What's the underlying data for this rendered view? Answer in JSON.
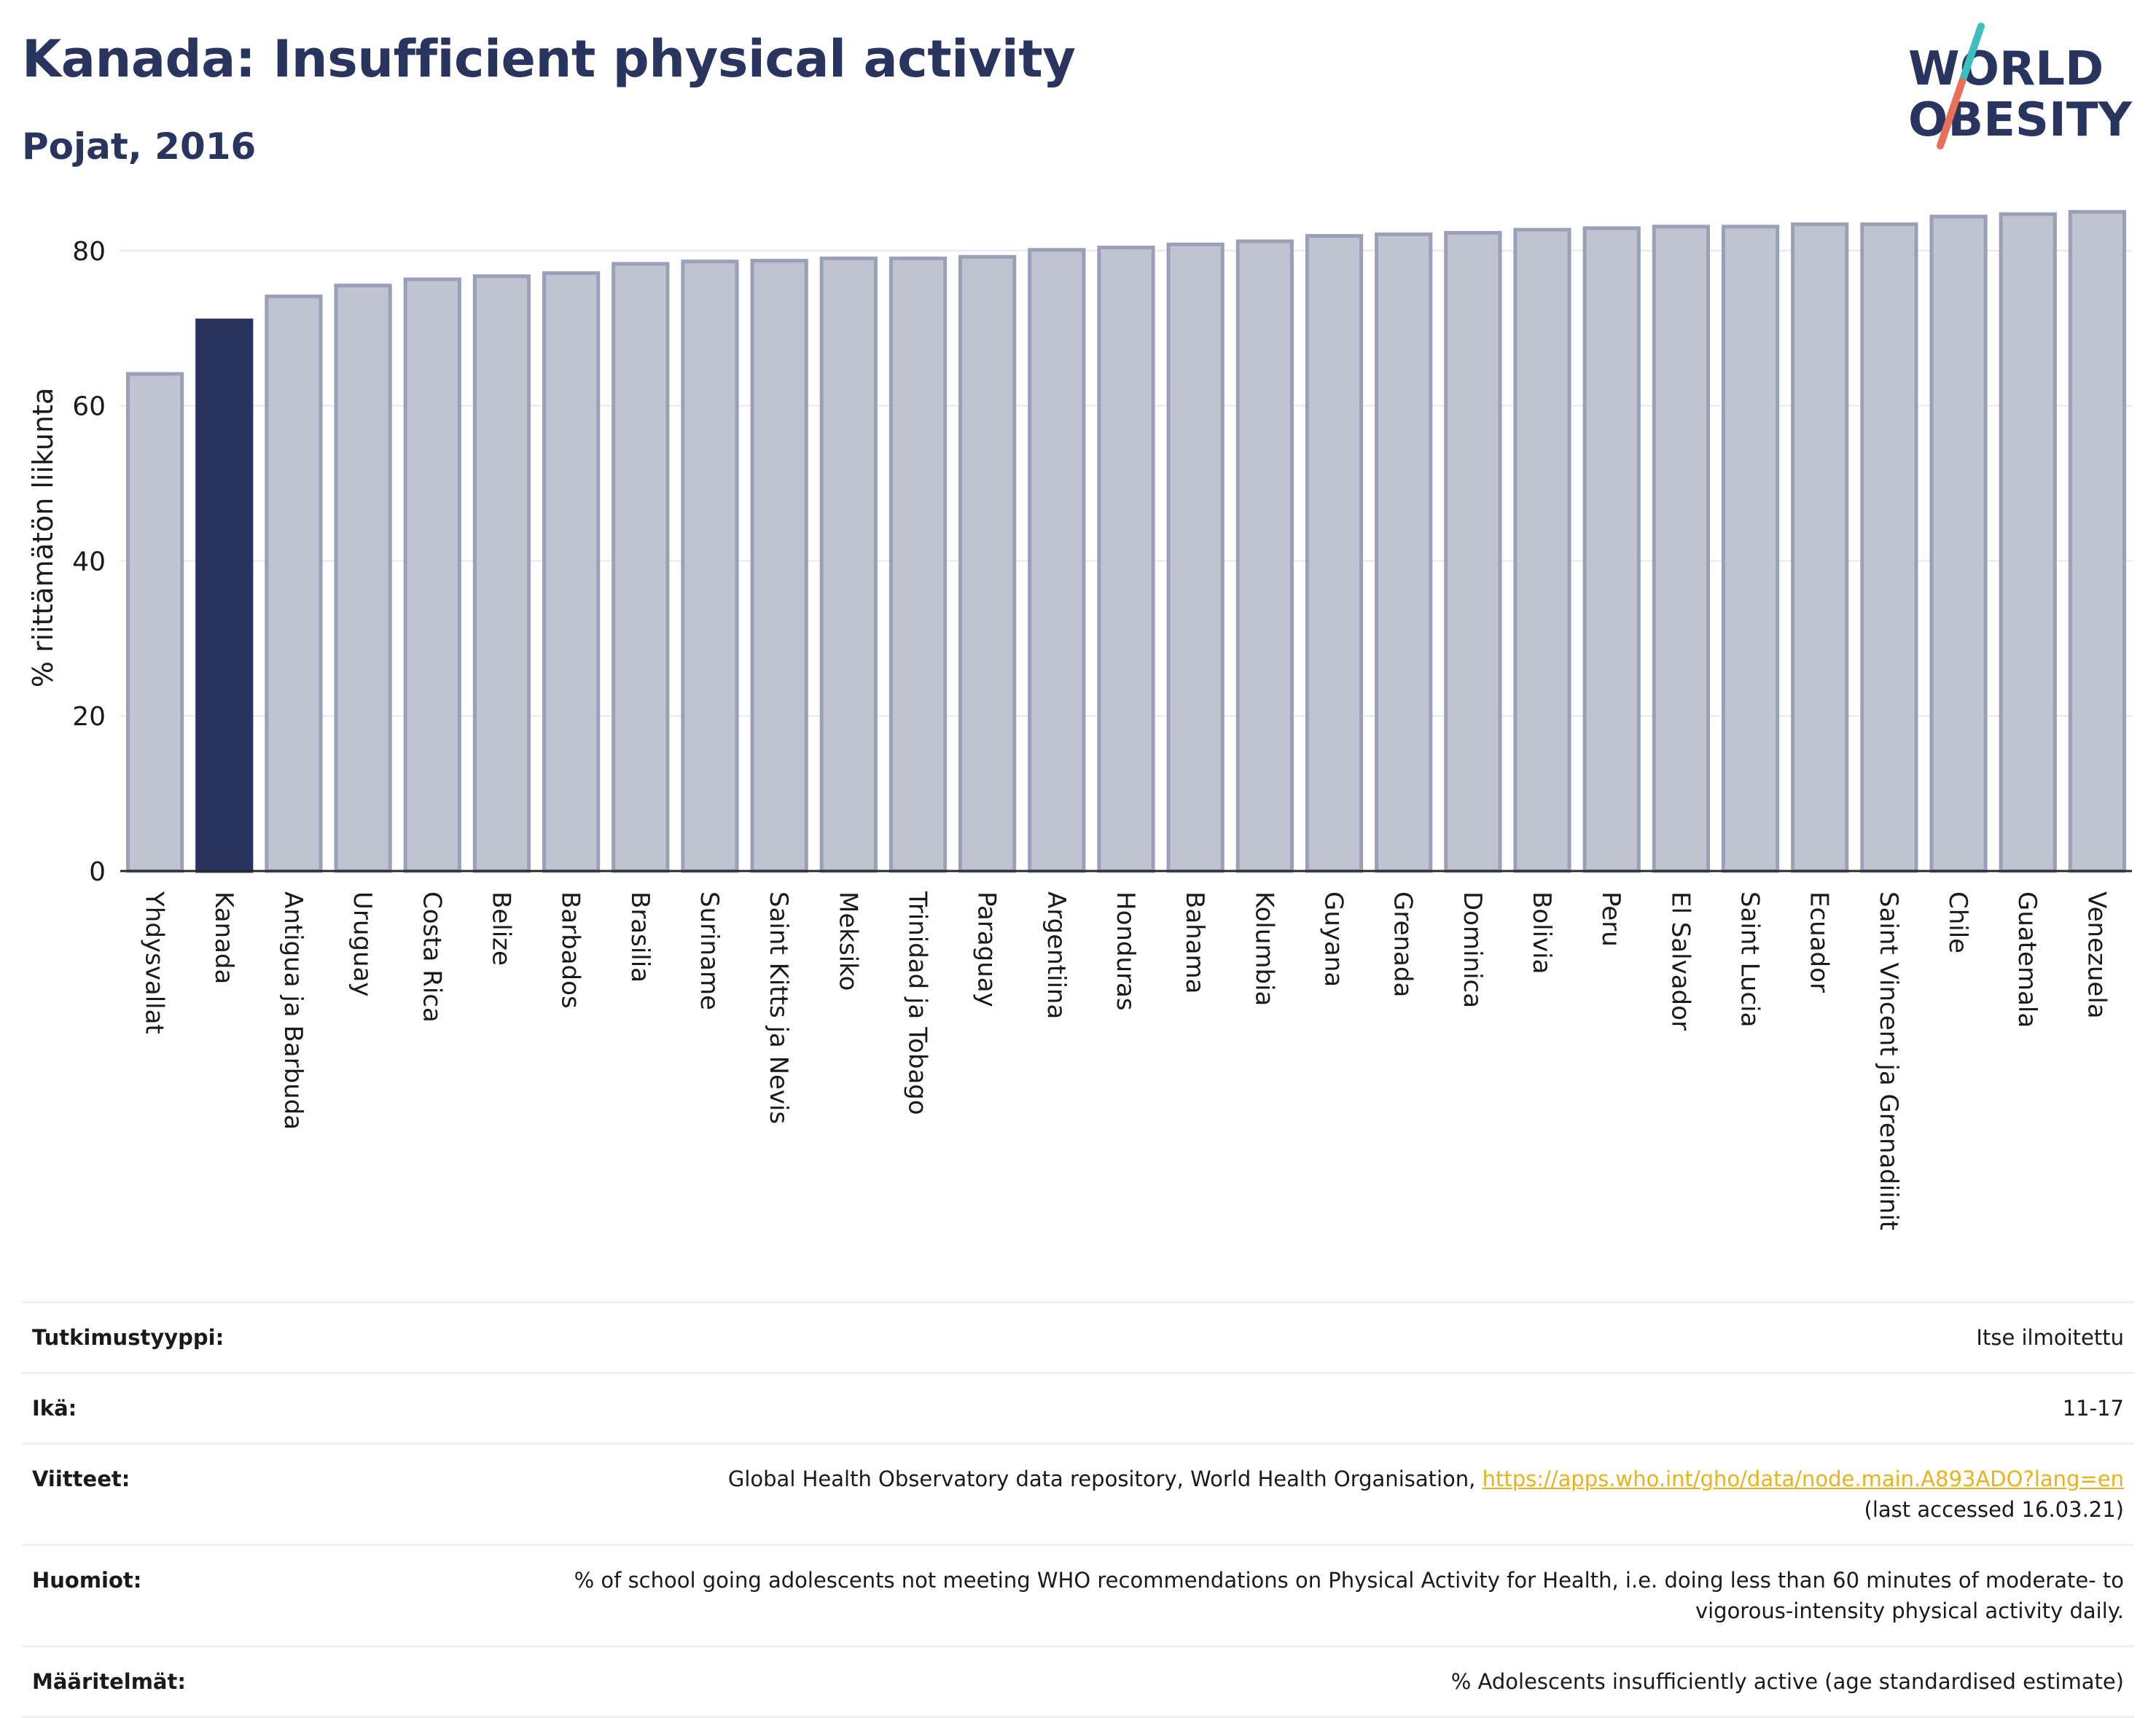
{
  "title": "Kanada: Insufficient physical activity",
  "subtitle": "Pojat, 2016",
  "logo": {
    "line1": "WORLD",
    "line2": "OBESITY"
  },
  "colors": {
    "highlight": "#2a355f",
    "bar_fill": "#c0c3d0",
    "bar_stroke": "#9aa0b8",
    "title": "#2a355f",
    "link": "#e8b21e",
    "logo_teal": "#3dbfbf",
    "logo_coral": "#e8705a"
  },
  "chart_data": {
    "type": "bar",
    "title": "",
    "xlabel": "",
    "ylabel": "% riittämätön liikunta",
    "ylim": [
      0,
      86
    ],
    "yticks": [
      0,
      20,
      40,
      60,
      80
    ],
    "grid": true,
    "highlight": "Kanada",
    "categories": [
      "Yhdysvallat",
      "Kanada",
      "Antigua ja Barbuda",
      "Uruguay",
      "Costa Rica",
      "Belize",
      "Barbados",
      "Brasilia",
      "Suriname",
      "Saint Kitts ja Nevis",
      "Meksiko",
      "Trinidad ja Tobago",
      "Paraguay",
      "Argentiina",
      "Honduras",
      "Bahama",
      "Kolumbia",
      "Guyana",
      "Grenada",
      "Dominica",
      "Bolivia",
      "Peru",
      "El Salvador",
      "Saint Lucia",
      "Ecuador",
      "Saint Vincent ja Grenadiinit",
      "Chile",
      "Guatemala",
      "Venezuela"
    ],
    "values": [
      64.1,
      71.0,
      74.1,
      75.5,
      76.3,
      76.7,
      77.1,
      78.3,
      78.6,
      78.7,
      79.0,
      79.0,
      79.2,
      80.1,
      80.4,
      80.8,
      81.2,
      81.9,
      82.1,
      82.3,
      82.7,
      82.9,
      83.1,
      83.1,
      83.4,
      83.4,
      84.4,
      84.7,
      85.0
    ]
  },
  "info": [
    {
      "label": "Tutkimustyyppi:",
      "value": "Itse ilmoitettu"
    },
    {
      "label": "Ikä:",
      "value": "11-17"
    },
    {
      "label": "Viitteet:",
      "value": "Global Health Observatory data repository, World Health Organisation, ",
      "link": "https://apps.who.int/gho/data/node.main.A893ADO?lang=en",
      "suffix": "(last accessed 16.03.21)"
    },
    {
      "label": "Huomiot:",
      "value": "% of school going adolescents not meeting WHO recommendations on Physical Activity for Health, i.e. doing less than 60 minutes of moderate- to vigorous-intensity physical activity daily."
    },
    {
      "label": "Määritelmät:",
      "value": "% Adolescents insufficiently active (age standardised estimate)"
    }
  ]
}
